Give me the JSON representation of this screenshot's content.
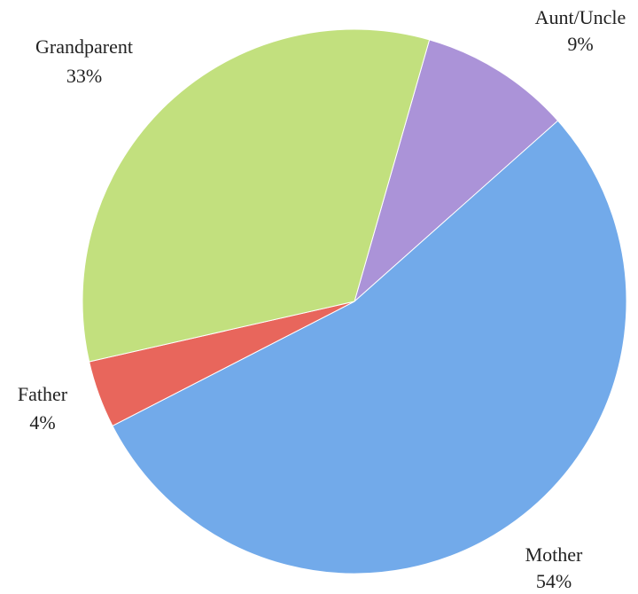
{
  "chart_data": {
    "type": "pie",
    "categories": [
      "Aunt/Uncle",
      "Mother",
      "Father",
      "Grandparent"
    ],
    "values": [
      9,
      54,
      4,
      33
    ],
    "value_labels": [
      "9%",
      "54%",
      "4%",
      "33%"
    ],
    "colors": [
      "#ab93d8",
      "#72aaea",
      "#e8665c",
      "#c2e07e"
    ]
  }
}
